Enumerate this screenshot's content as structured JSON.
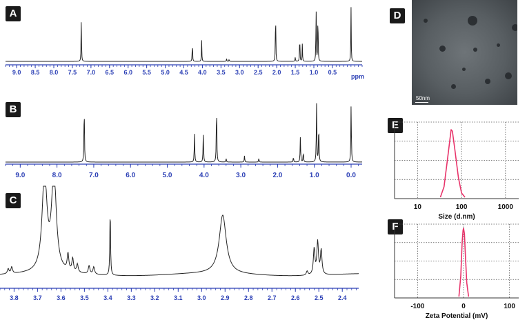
{
  "panels": {
    "A": {
      "label": "A",
      "xunit": "ppm",
      "ticks": [
        "9.0",
        "8.5",
        "8.0",
        "7.5",
        "7.0",
        "6.5",
        "6.0",
        "5.5",
        "5.0",
        "4.5",
        "4.0",
        "3.5",
        "3.0",
        "2.5",
        "2.0",
        "1.5",
        "1.0",
        "0.5"
      ]
    },
    "B": {
      "label": "B",
      "ticks": [
        "9.0",
        "8.0",
        "7.0",
        "6.0",
        "5.0",
        "4.0",
        "3.0",
        "2.0",
        "1.0",
        "0.0"
      ]
    },
    "C": {
      "label": "C",
      "ticks": [
        "3.8",
        "3.7",
        "3.6",
        "3.5",
        "3.4",
        "3.3",
        "3.2",
        "3.1",
        "3.0",
        "2.9",
        "2.8",
        "2.7",
        "2.6",
        "2.5",
        "2.4"
      ]
    },
    "D": {
      "label": "D",
      "scalebar_label": "50nm"
    },
    "E": {
      "label": "E",
      "ticks": [
        "10",
        "100",
        "1000"
      ],
      "xlabel": "Size (d.nm)"
    },
    "F": {
      "label": "F",
      "ticks": [
        "-100",
        "0",
        "100"
      ],
      "xlabel": "Zeta Potential (mV)"
    }
  },
  "chart_data": [
    {
      "id": "A",
      "type": "line",
      "title": "",
      "xlabel": "ppm",
      "ylabel": "",
      "xlim": [
        9.3,
        -0.3
      ],
      "x_reversed": true,
      "grid": false,
      "peaks": [
        {
          "x": 7.26,
          "height": 0.8
        },
        {
          "x": 4.27,
          "height": 0.36
        },
        {
          "x": 4.02,
          "height": 0.36
        },
        {
          "x": 3.35,
          "height": 0.05
        },
        {
          "x": 3.28,
          "height": 0.04
        },
        {
          "x": 2.03,
          "height": 0.98
        },
        {
          "x": 1.5,
          "height": 0.08
        },
        {
          "x": 1.38,
          "height": 0.5
        },
        {
          "x": 1.31,
          "height": 0.3
        },
        {
          "x": 0.94,
          "height": 1.0
        },
        {
          "x": 0.89,
          "height": 0.95
        },
        {
          "x": 0.0,
          "height": 0.97
        }
      ]
    },
    {
      "id": "B",
      "type": "line",
      "title": "",
      "xlabel": "",
      "ylabel": "",
      "xlim": [
        9.4,
        -0.3
      ],
      "x_reversed": true,
      "grid": false,
      "peaks": [
        {
          "x": 7.26,
          "height": 0.92
        },
        {
          "x": 4.26,
          "height": 0.45
        },
        {
          "x": 4.02,
          "height": 0.45
        },
        {
          "x": 3.66,
          "height": 0.92
        },
        {
          "x": 3.4,
          "height": 0.06
        },
        {
          "x": 2.9,
          "height": 0.1
        },
        {
          "x": 2.51,
          "height": 0.06
        },
        {
          "x": 1.57,
          "height": 0.08
        },
        {
          "x": 1.38,
          "height": 0.4
        },
        {
          "x": 1.3,
          "height": 0.16
        },
        {
          "x": 0.94,
          "height": 0.92
        },
        {
          "x": 0.88,
          "height": 0.6
        },
        {
          "x": 0.0,
          "height": 0.92
        }
      ]
    },
    {
      "id": "C",
      "type": "line",
      "title": "",
      "xlabel": "",
      "ylabel": "",
      "xlim": [
        3.86,
        2.33
      ],
      "x_reversed": true,
      "grid": false,
      "peaks": [
        {
          "x": 3.825,
          "height": 0.06
        },
        {
          "x": 3.81,
          "height": 0.08
        },
        {
          "x": 3.67,
          "height": 1.2
        },
        {
          "x": 3.63,
          "height": 1.2
        },
        {
          "x": 3.57,
          "height": 0.2
        },
        {
          "x": 3.55,
          "height": 0.16
        },
        {
          "x": 3.53,
          "height": 0.1
        },
        {
          "x": 3.48,
          "height": 0.1
        },
        {
          "x": 3.46,
          "height": 0.09
        },
        {
          "x": 3.39,
          "height": 0.82
        },
        {
          "x": 2.91,
          "height": 0.72
        },
        {
          "x": 2.52,
          "height": 0.32
        },
        {
          "x": 2.505,
          "height": 0.4
        },
        {
          "x": 2.49,
          "height": 0.3
        },
        {
          "x": 2.55,
          "height": 0.05
        }
      ]
    },
    {
      "id": "E",
      "type": "line",
      "title": "",
      "xlabel": "Size (d.nm)",
      "ylabel": "",
      "x_scale": "log",
      "xlim": [
        3,
        2000
      ],
      "grid": true,
      "color": "#e8336a",
      "x": [
        33,
        40,
        48,
        58,
        62,
        70,
        85,
        100,
        120
      ],
      "y": [
        0.0,
        0.15,
        0.55,
        0.97,
        0.95,
        0.7,
        0.28,
        0.06,
        0.0
      ]
    },
    {
      "id": "F",
      "type": "line",
      "title": "",
      "xlabel": "Zeta Potential (mV)",
      "ylabel": "",
      "xlim": [
        -150,
        120
      ],
      "grid": true,
      "color": "#e8336a",
      "x": [
        -10,
        -6,
        -3,
        -1,
        0,
        2,
        4,
        7,
        11
      ],
      "y": [
        0.0,
        0.3,
        0.8,
        0.97,
        1.0,
        0.92,
        0.6,
        0.2,
        0.0
      ]
    }
  ]
}
